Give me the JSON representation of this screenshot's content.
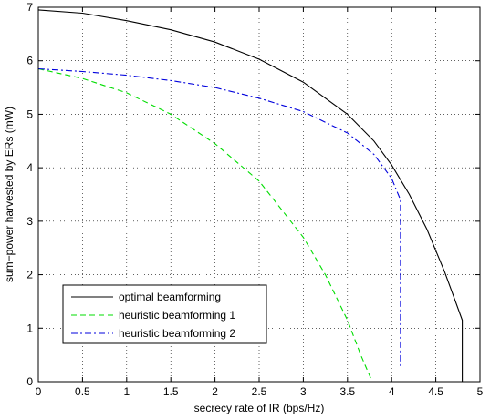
{
  "chart_data": {
    "type": "line",
    "title": "",
    "xlabel": "secrecy rate of IR (bps/Hz)",
    "ylabel": "sum−power harvested by ERs (mW)",
    "xlim": [
      0,
      5
    ],
    "ylim": [
      0,
      7
    ],
    "xticks": [
      0,
      0.5,
      1,
      1.5,
      2,
      2.5,
      3,
      3.5,
      4,
      4.5,
      5
    ],
    "xtick_labels": [
      "0",
      "0.5",
      "1",
      "1.5",
      "2",
      "2.5",
      "3",
      "3.5",
      "4",
      "4.5",
      "5"
    ],
    "yticks": [
      0,
      1,
      2,
      3,
      4,
      5,
      6,
      7
    ],
    "ytick_labels": [
      "0",
      "1",
      "2",
      "3",
      "4",
      "5",
      "6",
      "7"
    ],
    "grid": true,
    "legend_position": "bottom-left",
    "series": [
      {
        "name": "optimal beamforming",
        "color": "#000000",
        "dash": "solid",
        "x": [
          0,
          0.5,
          1.0,
          1.5,
          2.0,
          2.5,
          3.0,
          3.5,
          3.8,
          4.0,
          4.2,
          4.4,
          4.6,
          4.7,
          4.8,
          4.8
        ],
        "y": [
          6.95,
          6.89,
          6.75,
          6.58,
          6.35,
          6.03,
          5.6,
          5.0,
          4.5,
          4.05,
          3.5,
          2.85,
          2.05,
          1.6,
          1.15,
          0
        ]
      },
      {
        "name": "heuristic beamforming 1",
        "color": "#00dd00",
        "dash": "dashed",
        "x": [
          0,
          0.5,
          1.0,
          1.5,
          2.0,
          2.5,
          3.0,
          3.25,
          3.5,
          3.65,
          3.78
        ],
        "y": [
          5.85,
          5.67,
          5.4,
          5.0,
          4.45,
          3.75,
          2.7,
          2.0,
          1.15,
          0.5,
          0
        ]
      },
      {
        "name": "heuristic beamforming 2",
        "color": "#0000dd",
        "dash": "dashdot",
        "x": [
          0,
          0.5,
          1.0,
          1.5,
          2.0,
          2.5,
          3.0,
          3.5,
          3.8,
          4.0,
          4.1,
          4.1
        ],
        "y": [
          5.85,
          5.8,
          5.73,
          5.63,
          5.5,
          5.3,
          5.05,
          4.65,
          4.25,
          3.8,
          3.4,
          0.25
        ]
      }
    ]
  }
}
